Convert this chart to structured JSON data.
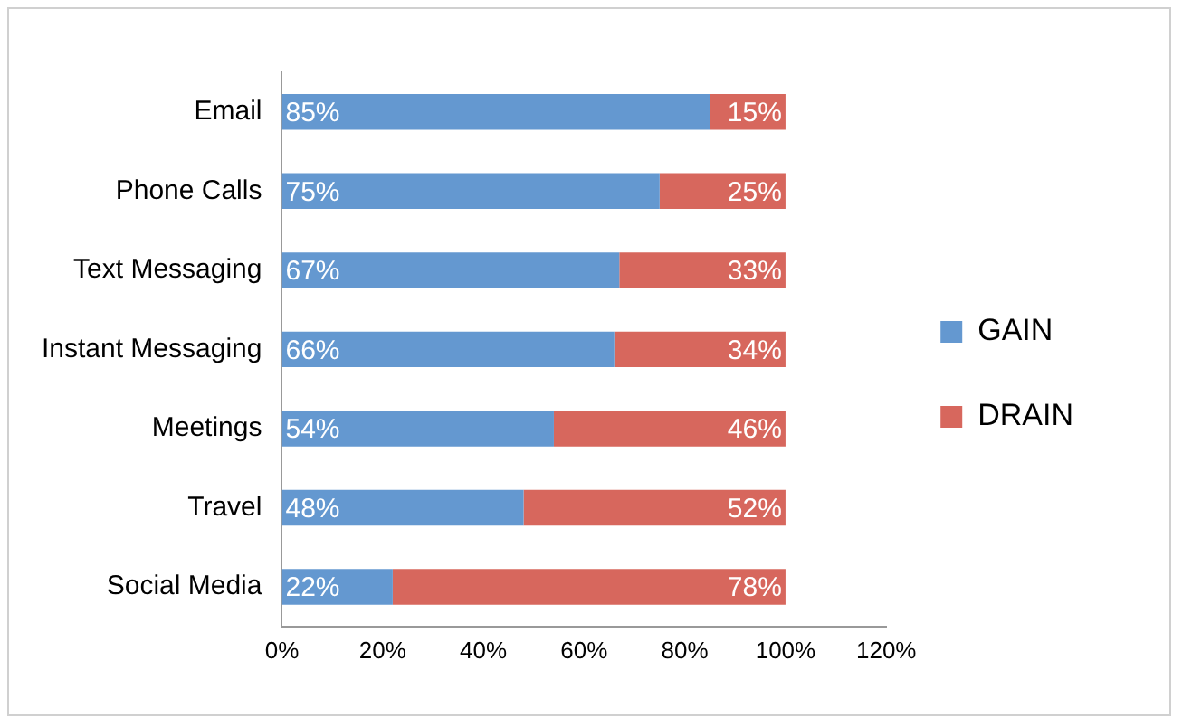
{
  "chart_data": {
    "type": "bar",
    "orientation": "horizontal",
    "stacked": true,
    "categories": [
      "Email",
      "Phone Calls",
      "Text Messaging",
      "Instant Messaging",
      "Meetings",
      "Travel",
      "Social Media"
    ],
    "series": [
      {
        "name": "GAIN",
        "color": "#6498d0",
        "values": [
          85,
          75,
          67,
          66,
          54,
          48,
          22
        ],
        "value_labels": [
          "85%",
          "75%",
          "67%",
          "66%",
          "54%",
          "48%",
          "22%"
        ]
      },
      {
        "name": "DRAIN",
        "color": "#d7675d",
        "values": [
          15,
          25,
          33,
          34,
          46,
          52,
          78
        ],
        "value_labels": [
          "15%",
          "25%",
          "33%",
          "34%",
          "46%",
          "52%",
          "78%"
        ]
      }
    ],
    "xlim": [
      0,
      120
    ],
    "xticks": [
      {
        "value": 0,
        "label": "0%"
      },
      {
        "value": 20,
        "label": "20%"
      },
      {
        "value": 40,
        "label": "40%"
      },
      {
        "value": 60,
        "label": "60%"
      },
      {
        "value": 80,
        "label": "80%"
      },
      {
        "value": 100,
        "label": "100%"
      },
      {
        "value": 120,
        "label": "120%"
      }
    ],
    "grid": false,
    "legend": "right"
  }
}
